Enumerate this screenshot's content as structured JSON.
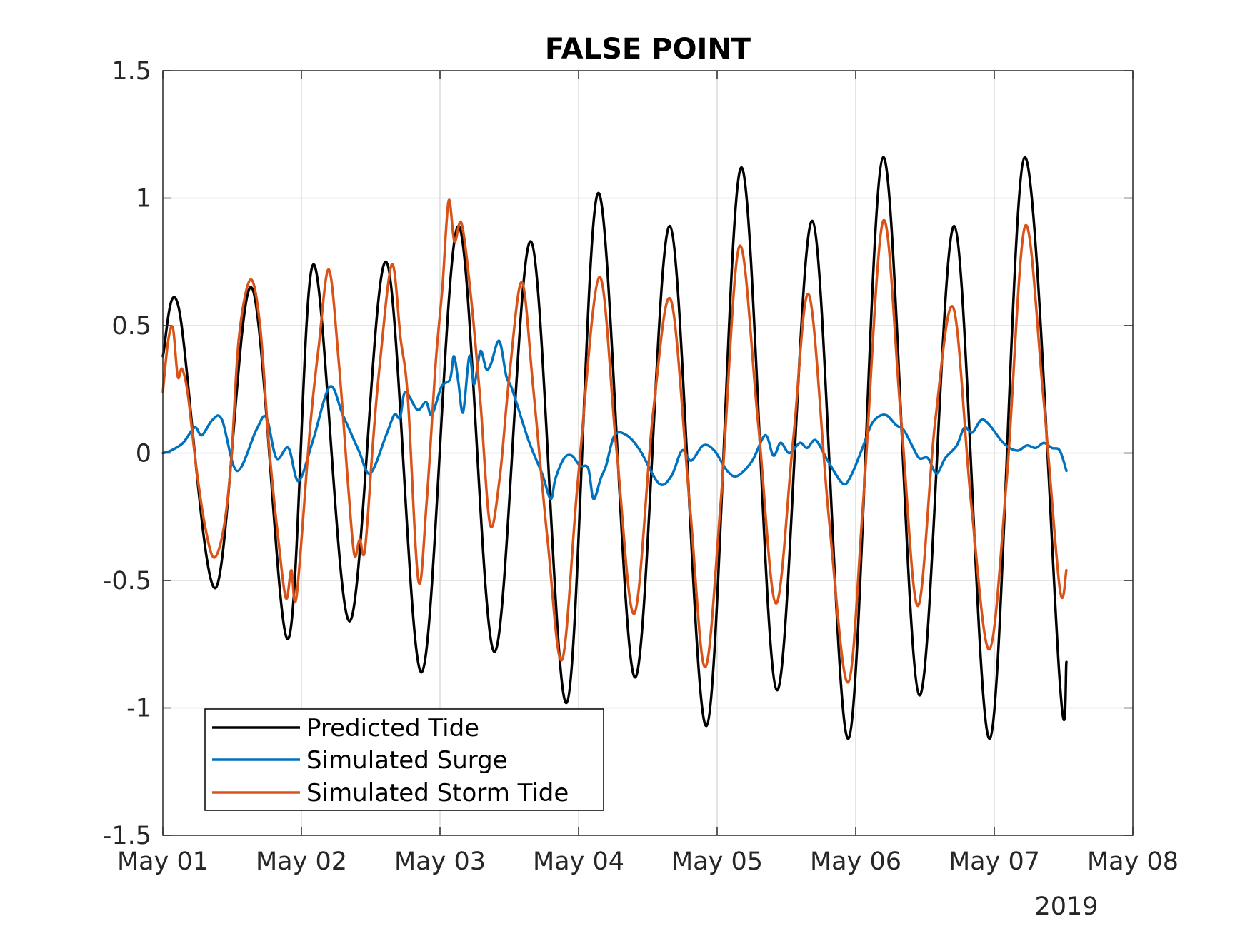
{
  "chart_data": {
    "type": "line",
    "title": "FALSE POINT",
    "xlabel": "",
    "ylabel": "",
    "year_label": "2019",
    "x_unit": "date",
    "x_ticks": [
      "May 01",
      "May 02",
      "May 03",
      "May 04",
      "May 05",
      "May 06",
      "May 07",
      "May 08"
    ],
    "y_ticks": [
      "1.5",
      "1",
      "0.5",
      "0",
      "-0.5",
      "-1",
      "-1.5"
    ],
    "xlim": [
      "2019-05-01",
      "2019-05-08"
    ],
    "ylim": [
      -1.5,
      1.5
    ],
    "grid": true,
    "legend_position": "bottom-left",
    "series": [
      {
        "name": "Predicted Tide",
        "color": "#000000",
        "points": [
          [
            "2019-05-01 00:00",
            0.38
          ],
          [
            "2019-05-01 02:45",
            0.57
          ],
          [
            "2019-05-01 09:05",
            -0.53
          ],
          [
            "2019-05-01 15:20",
            0.65
          ],
          [
            "2019-05-01 21:40",
            -0.73
          ],
          [
            "2019-05-02 02:05",
            0.74
          ],
          [
            "2019-05-02 08:20",
            -0.66
          ],
          [
            "2019-05-02 14:40",
            0.75
          ],
          [
            "2019-05-02 20:50",
            -0.86
          ],
          [
            "2019-05-03 03:10",
            0.89
          ],
          [
            "2019-05-03 09:25",
            -0.78
          ],
          [
            "2019-05-03 15:45",
            0.83
          ],
          [
            "2019-05-03 21:55",
            -0.98
          ],
          [
            "2019-05-04 03:25",
            1.02
          ],
          [
            "2019-05-04 09:45",
            -0.88
          ],
          [
            "2019-05-04 15:50",
            0.89
          ],
          [
            "2019-05-04 22:10",
            -1.07
          ],
          [
            "2019-05-05 04:10",
            1.12
          ],
          [
            "2019-05-05 10:20",
            -0.93
          ],
          [
            "2019-05-05 16:30",
            0.91
          ],
          [
            "2019-05-05 22:45",
            -1.12
          ],
          [
            "2019-05-06 04:45",
            1.16
          ],
          [
            "2019-05-06 11:00",
            -0.95
          ],
          [
            "2019-05-06 17:05",
            0.89
          ],
          [
            "2019-05-06 23:15",
            -1.12
          ],
          [
            "2019-05-07 05:15",
            1.16
          ],
          [
            "2019-05-07 11:25",
            -0.92
          ],
          [
            "2019-05-07 12:30",
            -0.82
          ]
        ]
      },
      {
        "name": "Simulated Surge",
        "color": "#0072BD",
        "points": [
          [
            "2019-05-01 00:00",
            0.0
          ],
          [
            "2019-05-01 01:25",
            0.01
          ],
          [
            "2019-05-01 03:30",
            0.04
          ],
          [
            "2019-05-01 05:30",
            0.1
          ],
          [
            "2019-05-01 06:45",
            0.07
          ],
          [
            "2019-05-01 08:35",
            0.13
          ],
          [
            "2019-05-01 10:15",
            0.13
          ],
          [
            "2019-05-01 12:50",
            -0.07
          ],
          [
            "2019-05-01 16:10",
            0.09
          ],
          [
            "2019-05-01 17:55",
            0.14
          ],
          [
            "2019-05-01 19:40",
            -0.02
          ],
          [
            "2019-05-01 21:45",
            0.02
          ],
          [
            "2019-05-01 23:30",
            -0.11
          ],
          [
            "2019-05-02 02:00",
            0.05
          ],
          [
            "2019-05-02 04:55",
            0.26
          ],
          [
            "2019-05-02 07:10",
            0.15
          ],
          [
            "2019-05-02 09:55",
            0.01
          ],
          [
            "2019-05-02 11:55",
            -0.08
          ],
          [
            "2019-05-02 14:40",
            0.07
          ],
          [
            "2019-05-02 16:05",
            0.15
          ],
          [
            "2019-05-02 17:05",
            0.14
          ],
          [
            "2019-05-02 18:00",
            0.24
          ],
          [
            "2019-05-02 20:05",
            0.17
          ],
          [
            "2019-05-02 21:35",
            0.2
          ],
          [
            "2019-05-02 22:35",
            0.15
          ],
          [
            "2019-05-03 00:15",
            0.26
          ],
          [
            "2019-05-03 01:45",
            0.29
          ],
          [
            "2019-05-03 02:25",
            0.38
          ],
          [
            "2019-05-03 03:10",
            0.28
          ],
          [
            "2019-05-03 04:00",
            0.16
          ],
          [
            "2019-05-03 05:05",
            0.38
          ],
          [
            "2019-05-03 05:55",
            0.27
          ],
          [
            "2019-05-03 07:00",
            0.4
          ],
          [
            "2019-05-03 08:00",
            0.33
          ],
          [
            "2019-05-03 08:50",
            0.35
          ],
          [
            "2019-05-03 10:15",
            0.44
          ],
          [
            "2019-05-03 11:30",
            0.3
          ],
          [
            "2019-05-03 12:30",
            0.25
          ],
          [
            "2019-05-03 15:20",
            0.05
          ],
          [
            "2019-05-03 17:40",
            -0.08
          ],
          [
            "2019-05-03 19:10",
            -0.18
          ],
          [
            "2019-05-03 20:00",
            -0.1
          ],
          [
            "2019-05-03 21:30",
            -0.02
          ],
          [
            "2019-05-03 22:50",
            -0.01
          ],
          [
            "2019-05-04 00:15",
            -0.05
          ],
          [
            "2019-05-04 01:40",
            -0.06
          ],
          [
            "2019-05-04 02:35",
            -0.18
          ],
          [
            "2019-05-04 03:50",
            -0.1
          ],
          [
            "2019-05-04 04:45",
            -0.05
          ],
          [
            "2019-05-04 06:15",
            0.07
          ],
          [
            "2019-05-04 08:20",
            0.07
          ],
          [
            "2019-05-04 10:40",
            0.01
          ],
          [
            "2019-05-04 13:55",
            -0.12
          ],
          [
            "2019-05-04 16:05",
            -0.09
          ],
          [
            "2019-05-04 17:55",
            0.01
          ],
          [
            "2019-05-04 19:30",
            -0.03
          ],
          [
            "2019-05-04 21:35",
            0.03
          ],
          [
            "2019-05-04 23:30",
            0.01
          ],
          [
            "2019-05-05 01:45",
            -0.07
          ],
          [
            "2019-05-05 03:30",
            -0.09
          ],
          [
            "2019-05-05 06:05",
            -0.03
          ],
          [
            "2019-05-05 08:20",
            0.07
          ],
          [
            "2019-05-05 09:45",
            -0.01
          ],
          [
            "2019-05-05 11:00",
            0.04
          ],
          [
            "2019-05-05 12:30",
            0.0
          ],
          [
            "2019-05-05 14:20",
            0.04
          ],
          [
            "2019-05-05 15:35",
            0.02
          ],
          [
            "2019-05-05 17:05",
            0.05
          ],
          [
            "2019-05-05 19:10",
            -0.03
          ],
          [
            "2019-05-05 21:45",
            -0.12
          ],
          [
            "2019-05-05 23:10",
            -0.09
          ],
          [
            "2019-05-06 01:10",
            0.02
          ],
          [
            "2019-05-06 02:55",
            0.12
          ],
          [
            "2019-05-06 05:05",
            0.15
          ],
          [
            "2019-05-06 07:00",
            0.11
          ],
          [
            "2019-05-06 08:20",
            0.09
          ],
          [
            "2019-05-06 09:45",
            0.03
          ],
          [
            "2019-05-06 11:00",
            -0.02
          ],
          [
            "2019-05-06 12:30",
            -0.02
          ],
          [
            "2019-05-06 14:00",
            -0.08
          ],
          [
            "2019-05-06 15:30",
            -0.02
          ],
          [
            "2019-05-06 17:30",
            0.03
          ],
          [
            "2019-05-06 18:50",
            0.1
          ],
          [
            "2019-05-06 20:10",
            0.08
          ],
          [
            "2019-05-06 21:45",
            0.13
          ],
          [
            "2019-05-06 23:10",
            0.11
          ],
          [
            "2019-05-07 01:10",
            0.05
          ],
          [
            "2019-05-07 02:40",
            0.02
          ],
          [
            "2019-05-07 04:10",
            0.01
          ],
          [
            "2019-05-07 05:40",
            0.03
          ],
          [
            "2019-05-07 07:10",
            0.02
          ],
          [
            "2019-05-07 08:35",
            0.04
          ],
          [
            "2019-05-07 10:00",
            0.02
          ],
          [
            "2019-05-07 11:20",
            0.01
          ],
          [
            "2019-05-07 12:30",
            -0.07
          ]
        ]
      },
      {
        "name": "Simulated Storm Tide",
        "color": "#D95319",
        "points": [
          [
            "2019-05-01 00:00",
            0.24
          ],
          [
            "2019-05-01 00:55",
            0.44
          ],
          [
            "2019-05-01 01:45",
            0.49
          ],
          [
            "2019-05-01 02:35",
            0.3
          ],
          [
            "2019-05-01 03:20",
            0.33
          ],
          [
            "2019-05-01 04:20",
            0.23
          ],
          [
            "2019-05-01 05:45",
            -0.05
          ],
          [
            "2019-05-01 07:15",
            -0.28
          ],
          [
            "2019-05-01 08:50",
            -0.41
          ],
          [
            "2019-05-01 10:30",
            -0.3
          ],
          [
            "2019-05-01 11:50",
            -0.03
          ],
          [
            "2019-05-01 13:10",
            0.45
          ],
          [
            "2019-05-01 15:10",
            0.68
          ],
          [
            "2019-05-01 16:50",
            0.5
          ],
          [
            "2019-05-01 18:25",
            0.02
          ],
          [
            "2019-05-01 20:00",
            -0.34
          ],
          [
            "2019-05-01 21:20",
            -0.57
          ],
          [
            "2019-05-01 22:15",
            -0.46
          ],
          [
            "2019-05-01 23:10",
            -0.56
          ],
          [
            "2019-05-02 01:30",
            0.1
          ],
          [
            "2019-05-02 03:00",
            0.42
          ],
          [
            "2019-05-02 04:45",
            0.72
          ],
          [
            "2019-05-02 06:30",
            0.35
          ],
          [
            "2019-05-02 08:10",
            -0.15
          ],
          [
            "2019-05-02 09:10",
            -0.4
          ],
          [
            "2019-05-02 10:05",
            -0.34
          ],
          [
            "2019-05-02 11:00",
            -0.38
          ],
          [
            "2019-05-02 12:25",
            0.05
          ],
          [
            "2019-05-02 13:35",
            0.35
          ],
          [
            "2019-05-02 15:40",
            0.74
          ],
          [
            "2019-05-02 17:10",
            0.45
          ],
          [
            "2019-05-02 18:25",
            0.22
          ],
          [
            "2019-05-02 20:15",
            -0.5
          ],
          [
            "2019-05-02 21:40",
            -0.2
          ],
          [
            "2019-05-02 23:15",
            0.35
          ],
          [
            "2019-05-03 00:25",
            0.65
          ],
          [
            "2019-05-03 01:30",
            0.99
          ],
          [
            "2019-05-03 02:30",
            0.83
          ],
          [
            "2019-05-03 03:45",
            0.9
          ],
          [
            "2019-05-03 05:25",
            0.6
          ],
          [
            "2019-05-03 07:00",
            0.2
          ],
          [
            "2019-05-03 08:40",
            -0.28
          ],
          [
            "2019-05-03 10:20",
            -0.1
          ],
          [
            "2019-05-03 12:00",
            0.3
          ],
          [
            "2019-05-03 14:10",
            0.67
          ],
          [
            "2019-05-03 16:10",
            0.25
          ],
          [
            "2019-05-03 18:40",
            -0.35
          ],
          [
            "2019-05-03 21:10",
            -0.81
          ],
          [
            "2019-05-03 23:55",
            -0.1
          ],
          [
            "2019-05-04 03:35",
            0.69
          ],
          [
            "2019-05-04 06:35",
            0.01
          ],
          [
            "2019-05-04 09:40",
            -0.63
          ],
          [
            "2019-05-04 12:55",
            0.16
          ],
          [
            "2019-05-04 16:00",
            0.6
          ],
          [
            "2019-05-04 19:15",
            -0.2
          ],
          [
            "2019-05-04 21:55",
            -0.84
          ],
          [
            "2019-05-05 00:40",
            -0.18
          ],
          [
            "2019-05-05 03:50",
            0.81
          ],
          [
            "2019-05-05 07:05",
            0.12
          ],
          [
            "2019-05-05 10:10",
            -0.59
          ],
          [
            "2019-05-05 13:10",
            0.05
          ],
          [
            "2019-05-05 15:55",
            0.62
          ],
          [
            "2019-05-05 19:20",
            -0.25
          ],
          [
            "2019-05-05 22:40",
            -0.9
          ],
          [
            "2019-05-06 01:20",
            -0.18
          ],
          [
            "2019-05-06 04:45",
            0.91
          ],
          [
            "2019-05-06 07:50",
            0.14
          ],
          [
            "2019-05-06 10:45",
            -0.6
          ],
          [
            "2019-05-06 13:45",
            0.12
          ],
          [
            "2019-05-06 16:55",
            0.57
          ],
          [
            "2019-05-06 20:00",
            -0.2
          ],
          [
            "2019-05-06 23:10",
            -0.77
          ],
          [
            "2019-05-07 02:10",
            -0.1
          ],
          [
            "2019-05-07 05:20",
            0.89
          ],
          [
            "2019-05-07 08:30",
            0.22
          ],
          [
            "2019-05-07 11:20",
            -0.53
          ],
          [
            "2019-05-07 12:30",
            -0.46
          ]
        ]
      }
    ]
  }
}
